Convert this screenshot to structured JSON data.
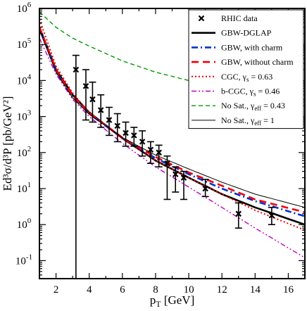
{
  "chart_data": {
    "type": "scatter",
    "xlabel": "p",
    "xlabel_sub": "T",
    "xlabel_unit": " [GeV]",
    "ylabel": "Ed³σ/d³P [pb/GeV²]",
    "xlim": [
      1,
      17
    ],
    "ylim_log10": [
      -1.5,
      6
    ],
    "log_y": true,
    "x_ticks": [
      2,
      4,
      6,
      8,
      10,
      12,
      14,
      16
    ],
    "y_tick_exponents": [
      -1,
      0,
      1,
      2,
      3,
      4,
      5,
      6
    ],
    "y_tick_base": "10",
    "legend_position": "top-right",
    "legend": [
      {
        "key": "data",
        "label": "RHIC data",
        "color": "#000000",
        "style": "marker"
      },
      {
        "key": "gbw_dglap",
        "label": "GBW-DGLAP",
        "color": "#000000",
        "style": "solid-thick"
      },
      {
        "key": "gbw_charm",
        "label": "GBW, with charm",
        "color": "#0033cc",
        "style": "dashdot"
      },
      {
        "key": "gbw_nocharm",
        "label": "GBW, without charm",
        "color": "#ee0000",
        "style": "dashed"
      },
      {
        "key": "cgc",
        "label": "CGC, γ",
        "sub": "s",
        "tail": " = 0.63",
        "color": "#ee0000",
        "style": "dotted"
      },
      {
        "key": "bcgc",
        "label": "b-CGC, γ",
        "sub": "s",
        "tail": " = 0.46",
        "color": "#bb00bb",
        "style": "dashdotdot"
      },
      {
        "key": "nosat043",
        "label": "No Sat., γ",
        "sub": "eff",
        "tail": " = 0.43",
        "color": "#009900",
        "style": "dashed-thin"
      },
      {
        "key": "nosat1",
        "label": "No Sat., γ",
        "sub": "eff",
        "tail": " = 1",
        "color": "#000000",
        "style": "solid-thin"
      }
    ],
    "data_points": [
      {
        "x": 3.2,
        "y": 20000,
        "ylo": 0.015,
        "yhi": 50000
      },
      {
        "x": 3.8,
        "y": 7000,
        "ylo": 800,
        "yhi": 20000
      },
      {
        "x": 4.2,
        "y": 3000,
        "ylo": 700,
        "yhi": 9000
      },
      {
        "x": 4.7,
        "y": 1500,
        "ylo": 500,
        "yhi": 4000
      },
      {
        "x": 5.2,
        "y": 800,
        "ylo": 300,
        "yhi": 1800
      },
      {
        "x": 5.7,
        "y": 550,
        "ylo": 200,
        "yhi": 1200
      },
      {
        "x": 6.2,
        "y": 350,
        "ylo": 150,
        "yhi": 700
      },
      {
        "x": 6.7,
        "y": 300,
        "ylo": 150,
        "yhi": 500
      },
      {
        "x": 7.2,
        "y": 200,
        "ylo": 80,
        "yhi": 400
      },
      {
        "x": 7.7,
        "y": 120,
        "ylo": 50,
        "yhi": 200
      },
      {
        "x": 8.2,
        "y": 100,
        "ylo": 40,
        "yhi": 160
      },
      {
        "x": 8.7,
        "y": 50,
        "ylo": 5,
        "yhi": 80
      },
      {
        "x": 9.2,
        "y": 25,
        "ylo": 8,
        "yhi": 40
      },
      {
        "x": 9.7,
        "y": 20,
        "ylo": 5,
        "yhi": 30
      },
      {
        "x": 11.0,
        "y": 10,
        "ylo": 6,
        "yhi": 18
      },
      {
        "x": 13.0,
        "y": 2,
        "ylo": 0.8,
        "yhi": 4
      },
      {
        "x": 15.0,
        "y": 1.8,
        "ylo": 1,
        "yhi": 3
      }
    ],
    "series": [
      {
        "key": "gbw_dglap",
        "x": [
          1,
          2,
          3,
          4,
          6,
          8,
          10,
          12,
          14,
          17
        ],
        "y": [
          300000,
          20000,
          4000,
          1300,
          250,
          60,
          20,
          7,
          3,
          1
        ]
      },
      {
        "key": "gbw_charm",
        "x": [
          1,
          2,
          3,
          4,
          6,
          8,
          10,
          12,
          14,
          17
        ],
        "y": [
          300000,
          18000,
          3500,
          1200,
          250,
          70,
          25,
          10,
          4.5,
          1.7
        ]
      },
      {
        "key": "gbw_nocharm",
        "x": [
          1,
          2,
          3,
          4,
          6,
          8,
          10,
          12,
          14,
          17
        ],
        "y": [
          300000,
          19000,
          3800,
          1250,
          260,
          75,
          28,
          12,
          5,
          2.2
        ]
      },
      {
        "key": "cgc",
        "x": [
          1,
          2,
          3,
          4,
          6,
          8,
          10,
          12,
          14,
          17
        ],
        "y": [
          500000,
          25000,
          4500,
          1300,
          240,
          60,
          20,
          7,
          2.5,
          0.7
        ]
      },
      {
        "key": "bcgc",
        "x": [
          1,
          2,
          3,
          4,
          6,
          8,
          10,
          12,
          14,
          17
        ],
        "y": [
          150000,
          15000,
          3000,
          1000,
          180,
          40,
          11,
          3,
          0.8,
          0.12
        ]
      },
      {
        "key": "nosat043",
        "x": [
          1,
          2,
          3,
          4,
          6,
          8,
          10,
          12,
          14,
          17
        ],
        "y": [
          800000,
          300000,
          150000,
          90000,
          35000,
          17000,
          10000,
          6000,
          4000,
          2500
        ]
      },
      {
        "key": "nosat1",
        "x": [
          1,
          2,
          3,
          4,
          6,
          8,
          10,
          12,
          14,
          17
        ],
        "y": [
          250000,
          17000,
          3300,
          1150,
          260,
          85,
          35,
          15,
          7,
          3
        ]
      }
    ]
  }
}
